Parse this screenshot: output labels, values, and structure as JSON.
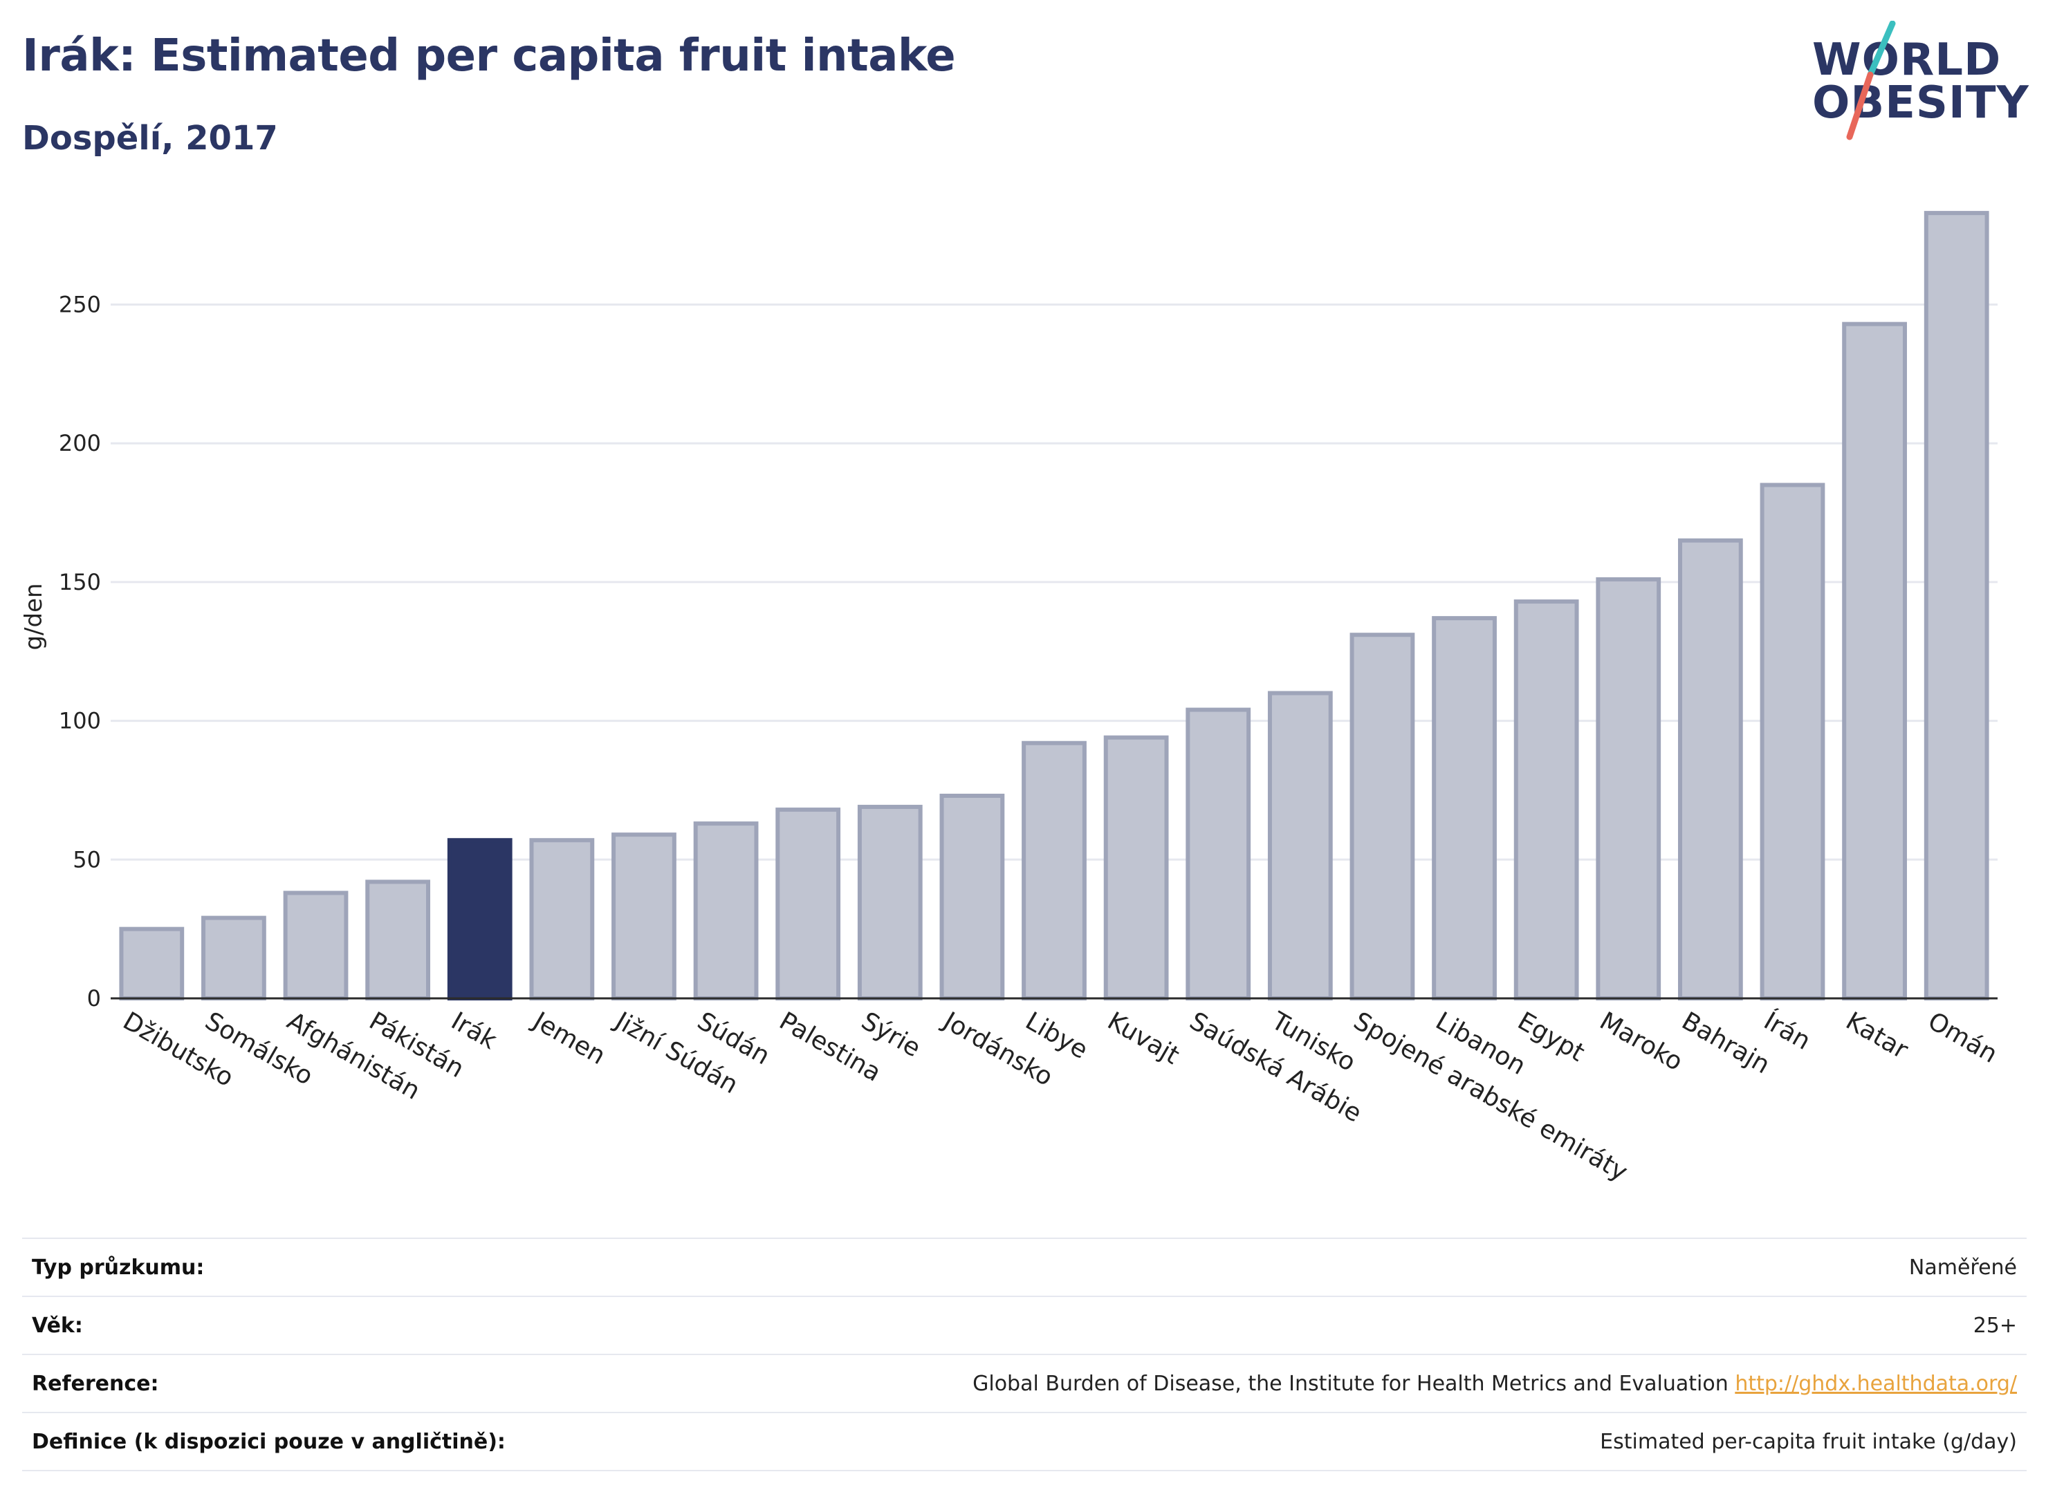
{
  "header": {
    "title": "Irák: Estimated per capita fruit intake",
    "subtitle": "Dospělí, 2017"
  },
  "logo": {
    "line1": "WORLD",
    "line2": "OBESITY",
    "colors": {
      "text": "#2b3664",
      "slash_top": "#3bbfbf",
      "slash_bottom": "#e8675a"
    }
  },
  "chart_data": {
    "type": "bar",
    "ylabel": "g/den",
    "ylim": [
      0,
      290
    ],
    "yticks": [
      0,
      50,
      100,
      150,
      200,
      250
    ],
    "grid": true,
    "highlight": "Irák",
    "colors": {
      "bar": "#c0c4d1",
      "bar_edge": "#9ea4b9",
      "highlight": "#2b3664",
      "grid": "#e6e8ef",
      "axis": "#2b2b2b"
    },
    "categories": [
      "Džibutsko",
      "Somálsko",
      "Afghánistán",
      "Pákistán",
      "Irák",
      "Jemen",
      "Jižní Súdán",
      "Súdán",
      "Palestina",
      "Sýrie",
      "Jordánsko",
      "Libye",
      "Kuvajt",
      "Saúdská Arábie",
      "Tunisko",
      "Spojené arabské emiráty",
      "Libanon",
      "Egypt",
      "Maroko",
      "Bahrajn",
      "Írán",
      "Katar",
      "Omán"
    ],
    "values": [
      25,
      29,
      38,
      42,
      57,
      57,
      59,
      63,
      68,
      69,
      73,
      92,
      94,
      104,
      110,
      131,
      137,
      143,
      151,
      165,
      185,
      243,
      283
    ]
  },
  "info": [
    {
      "label": "Typ průzkumu:",
      "value": "Naměřené"
    },
    {
      "label": "Věk:",
      "value": "25+"
    },
    {
      "label": "Reference:",
      "value": "Global Burden of Disease, the Institute for Health Metrics and Evaluation",
      "link": "http://ghdx.healthdata.org/"
    },
    {
      "label": "Definice (k dispozici pouze v angličtině):",
      "value": "Estimated per-capita fruit intake (g/day)"
    }
  ]
}
